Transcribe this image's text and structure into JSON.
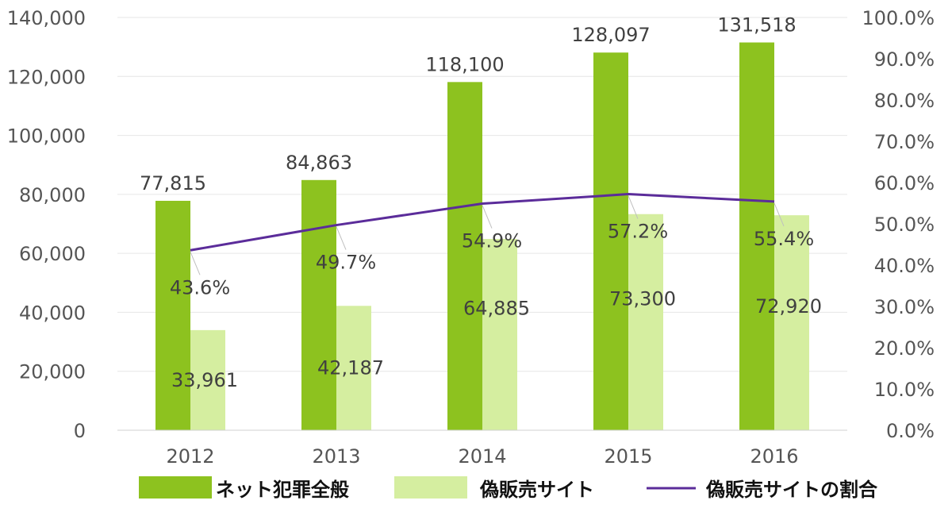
{
  "chart_data": {
    "type": "bar",
    "categories": [
      "2012",
      "2013",
      "2014",
      "2015",
      "2016"
    ],
    "series": [
      {
        "name": "ネット犯罪全般",
        "type": "bar",
        "axis": "left",
        "color": "#8dc21f",
        "values": [
          77815,
          84863,
          118100,
          128097,
          131518
        ],
        "labels": [
          "77,815",
          "84,863",
          "118,100",
          "128,097",
          "131,518"
        ]
      },
      {
        "name": "偽販売サイト",
        "type": "bar",
        "axis": "left",
        "color": "#d5eea0",
        "values": [
          33961,
          42187,
          64885,
          73300,
          72920
        ],
        "labels": [
          "33,961",
          "42,187",
          "64,885",
          "73,300",
          "72,920"
        ]
      },
      {
        "name": "偽販売サイトの割合",
        "type": "line",
        "axis": "right",
        "color": "#5b2c9a",
        "values": [
          43.6,
          49.7,
          54.9,
          57.2,
          55.4
        ],
        "labels": [
          "43.6%",
          "49.7%",
          "54.9%",
          "57.2%",
          "55.4%"
        ]
      }
    ],
    "y_left": {
      "min": 0,
      "max": 140000,
      "ticks": [
        "0",
        "20,000",
        "40,000",
        "60,000",
        "80,000",
        "100,000",
        "120,000",
        "140,000"
      ]
    },
    "y_right": {
      "min": 0,
      "max": 100,
      "ticks": [
        "0.0%",
        "10.0%",
        "20.0%",
        "30.0%",
        "40.0%",
        "50.0%",
        "60.0%",
        "70.0%",
        "80.0%",
        "90.0%",
        "100.0%"
      ]
    },
    "grid": true,
    "legend_position": "bottom"
  }
}
